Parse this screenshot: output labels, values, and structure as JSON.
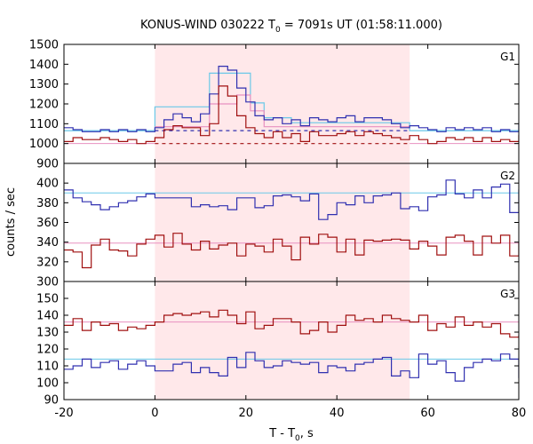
{
  "chart_data": {
    "type": "line",
    "title_main": "KONUS-WIND 030222 T",
    "title_sub": "0",
    "title_rest": " = 7091s UT (01:58:11.000)",
    "xlabel_main": "T - T",
    "xlabel_sub": "0",
    "xlabel_rest": ", s",
    "ylabel": "counts / sec",
    "xlim": [
      -20,
      80
    ],
    "xticks": [
      -20,
      0,
      20,
      40,
      60,
      80
    ],
    "shade": {
      "from": 0,
      "to": 56,
      "color": "#ffe8ea"
    },
    "colors": {
      "blue": "#3030b0",
      "red": "#a01010",
      "cyan": "#6ac8e8",
      "pink": "#e890c0"
    },
    "bin_start": -20,
    "bin_width": 2,
    "panels": [
      {
        "label": "G1",
        "ylim": [
          900,
          1500
        ],
        "yticks": [
          900,
          1000,
          1100,
          1200,
          1300,
          1400,
          1500
        ],
        "series": [
          {
            "color": "blue",
            "values": [
              1080,
              1070,
              1060,
              1060,
              1070,
              1060,
              1070,
              1060,
              1070,
              1060,
              1080,
              1120,
              1150,
              1130,
              1110,
              1150,
              1250,
              1390,
              1370,
              1280,
              1210,
              1140,
              1120,
              1130,
              1100,
              1120,
              1090,
              1130,
              1120,
              1110,
              1130,
              1140,
              1110,
              1130,
              1130,
              1120,
              1100,
              1080,
              1090,
              1080,
              1070,
              1060,
              1080,
              1070,
              1080,
              1070,
              1080,
              1060,
              1070,
              1060,
              1100
            ]
          },
          {
            "color": "red",
            "values": [
              1010,
              1030,
              1020,
              1020,
              1030,
              1020,
              1010,
              1020,
              1000,
              1010,
              1030,
              1070,
              1090,
              1080,
              1080,
              1040,
              1100,
              1290,
              1240,
              1140,
              1080,
              1050,
              1030,
              1060,
              1030,
              1050,
              1010,
              1060,
              1040,
              1040,
              1050,
              1060,
              1040,
              1060,
              1050,
              1040,
              1030,
              1020,
              1040,
              1020,
              1000,
              1010,
              1030,
              1020,
              1030,
              1010,
              1030,
              1010,
              1020,
              1010,
              1040
            ]
          }
        ],
        "steps": [
          {
            "color": "cyan",
            "points": [
              [
                -20,
                1065
              ],
              [
                0,
                1065
              ],
              [
                0,
                1185
              ],
              [
                12,
                1185
              ],
              [
                12,
                1355
              ],
              [
                21,
                1355
              ],
              [
                21,
                1205
              ],
              [
                24,
                1205
              ],
              [
                24,
                1130
              ],
              [
                30,
                1130
              ],
              [
                30,
                1105
              ],
              [
                56,
                1105
              ],
              [
                56,
                1065
              ],
              [
                80,
                1065
              ]
            ]
          },
          {
            "color": "pink",
            "points": [
              [
                0,
                1085
              ],
              [
                12,
                1085
              ],
              [
                12,
                1200
              ],
              [
                18,
                1200
              ],
              [
                18,
                1245
              ],
              [
                21,
                1245
              ],
              [
                21,
                1165
              ],
              [
                24,
                1165
              ],
              [
                24,
                1085
              ],
              [
                56,
                1085
              ]
            ]
          }
        ],
        "baselines": [
          {
            "color": "blue",
            "value": 1065,
            "dashed": true,
            "from": 0,
            "to": 56,
            "solid_color": "cyan"
          },
          {
            "color": "red",
            "value": 1000,
            "dashed": true,
            "from": 0,
            "to": 56,
            "solid_color": "pink"
          }
        ]
      },
      {
        "label": "G2",
        "ylim": [
          300,
          420
        ],
        "yticks": [
          300,
          320,
          340,
          360,
          380,
          400
        ],
        "series": [
          {
            "color": "blue",
            "values": [
              393,
              385,
              381,
              378,
              373,
              376,
              380,
              382,
              386,
              389,
              385,
              385,
              385,
              385,
              376,
              378,
              376,
              377,
              373,
              385,
              385,
              375,
              377,
              387,
              388,
              386,
              382,
              389,
              363,
              368,
              380,
              378,
              387,
              380,
              387,
              388,
              390,
              374,
              376,
              372,
              386,
              388,
              403,
              389,
              385,
              393,
              385,
              396,
              399,
              370,
              393
            ]
          },
          {
            "color": "red",
            "values": [
              332,
              330,
              314,
              337,
              343,
              332,
              331,
              326,
              338,
              343,
              347,
              335,
              349,
              338,
              332,
              341,
              333,
              337,
              339,
              326,
              338,
              336,
              330,
              343,
              336,
              322,
              345,
              338,
              348,
              345,
              330,
              343,
              327,
              342,
              341,
              342,
              343,
              342,
              333,
              341,
              336,
              327,
              345,
              347,
              341,
              327,
              346,
              339,
              347,
              326,
              339
            ]
          }
        ],
        "lines": [
          {
            "color": "cyan",
            "value": 390
          },
          {
            "color": "pink",
            "value": 339
          }
        ]
      },
      {
        "label": "G3",
        "ylim": [
          90,
          160
        ],
        "yticks": [
          90,
          100,
          110,
          120,
          130,
          140,
          150
        ],
        "series": [
          {
            "color": "red",
            "values": [
              134,
              138,
              131,
              136,
              134,
              135,
              131,
              133,
              132,
              134,
              136,
              140,
              141,
              140,
              141,
              142,
              139,
              143,
              140,
              135,
              142,
              132,
              134,
              138,
              138,
              136,
              129,
              131,
              136,
              130,
              134,
              140,
              137,
              138,
              136,
              140,
              138,
              137,
              136,
              140,
              131,
              135,
              133,
              139,
              134,
              136,
              133,
              135,
              129,
              127,
              128
            ]
          },
          {
            "color": "blue",
            "values": [
              108,
              110,
              114,
              109,
              112,
              113,
              108,
              111,
              113,
              110,
              107,
              107,
              111,
              112,
              106,
              109,
              106,
              104,
              115,
              109,
              118,
              113,
              109,
              110,
              113,
              112,
              111,
              112,
              106,
              110,
              109,
              107,
              111,
              112,
              114,
              115,
              104,
              107,
              103,
              117,
              111,
              113,
              106,
              101,
              109,
              112,
              114,
              113,
              117,
              114,
              103
            ]
          }
        ],
        "lines": [
          {
            "color": "cyan",
            "value": 114
          },
          {
            "color": "pink",
            "value": 136
          }
        ]
      }
    ]
  }
}
